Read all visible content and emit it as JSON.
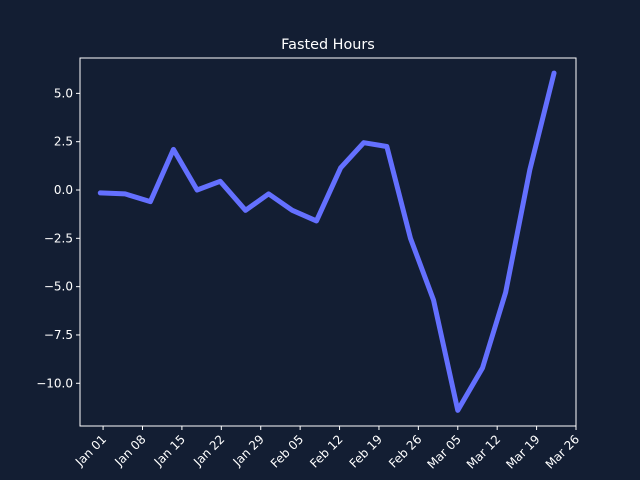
{
  "chart_data": {
    "type": "line",
    "title": "Fasted Hours",
    "x": [
      -0.5,
      3.9,
      8.4,
      12.5,
      16.7,
      20.8,
      25.3,
      29.4,
      33.6,
      37.9,
      42.2,
      46.3,
      50.4,
      54.6,
      58.7,
      63.0,
      67.4,
      71.5,
      75.8,
      80.1
    ],
    "series": [
      {
        "name": "Fasted Hours",
        "color": "#6470ff",
        "values": [
          -0.15,
          -0.2,
          -0.6,
          2.1,
          0.0,
          0.45,
          -1.05,
          -0.2,
          -1.05,
          -1.6,
          1.15,
          2.45,
          2.25,
          -2.5,
          -5.7,
          -11.4,
          -9.2,
          -5.3,
          1.05,
          6.05
        ]
      }
    ],
    "xlim": [
      -4.1,
      84
    ],
    "xticks": [
      {
        "value": 0,
        "label": "Jan 01"
      },
      {
        "value": 7,
        "label": "Jan 08"
      },
      {
        "value": 14,
        "label": "Jan 15"
      },
      {
        "value": 21,
        "label": "Jan 22"
      },
      {
        "value": 28,
        "label": "Jan 29"
      },
      {
        "value": 35,
        "label": "Feb 05"
      },
      {
        "value": 42,
        "label": "Feb 12"
      },
      {
        "value": 49,
        "label": "Feb 19"
      },
      {
        "value": 56,
        "label": "Feb 26"
      },
      {
        "value": 63,
        "label": "Mar 05"
      },
      {
        "value": 70,
        "label": "Mar 12"
      },
      {
        "value": 77,
        "label": "Mar 19"
      },
      {
        "value": 84,
        "label": "Mar 26"
      }
    ],
    "ylim": [
      -12.21,
      6.83
    ],
    "yticks": [
      {
        "value": -10,
        "label": "−10.0"
      },
      {
        "value": -7.5,
        "label": "−7.5"
      },
      {
        "value": -5,
        "label": "−5.0"
      },
      {
        "value": -2.5,
        "label": "−2.5"
      },
      {
        "value": 0,
        "label": "0.0"
      },
      {
        "value": 2.5,
        "label": "2.5"
      },
      {
        "value": 5,
        "label": "5.0"
      }
    ],
    "grid": false
  }
}
